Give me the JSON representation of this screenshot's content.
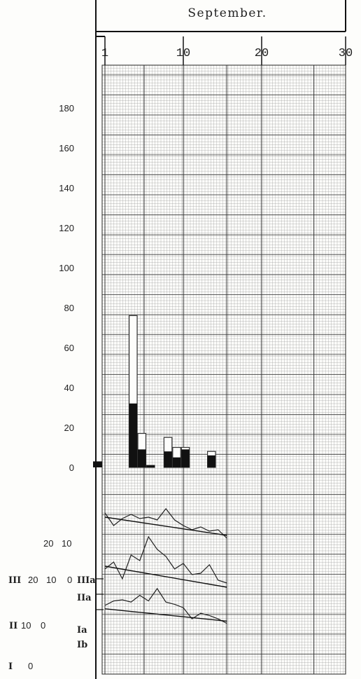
{
  "chart_data": {
    "type": "bar",
    "title": "September.",
    "x_ticks": [
      "1",
      "10",
      "20",
      "30"
    ],
    "upper_y_ticks": [
      "0",
      "20",
      "40",
      "60",
      "80",
      "100",
      "120",
      "140",
      "160",
      "180"
    ],
    "upper_ylim": [
      0,
      200
    ],
    "bar_series": [
      {
        "style": "outline",
        "days": [
          1,
          2,
          3,
          4,
          5,
          6,
          7,
          8,
          9,
          10,
          11,
          12,
          13
        ],
        "values": [
          0,
          0,
          0,
          76,
          17,
          1,
          0,
          15,
          10,
          10,
          0,
          0,
          8
        ]
      },
      {
        "style": "solid",
        "days": [
          1,
          2,
          3,
          4,
          5,
          6,
          7,
          8,
          9,
          10,
          11,
          12,
          13
        ],
        "values": [
          0,
          0,
          0,
          32,
          9,
          1,
          0,
          8,
          5,
          9,
          0,
          0,
          6
        ]
      }
    ],
    "pre_axis_bar_value": 3,
    "lower_line_groups": [
      {
        "scale_ticks": [
          "20",
          "10"
        ],
        "curve": [
          [
            1,
            24
          ],
          [
            2,
            15
          ],
          [
            3,
            20
          ],
          [
            4,
            23
          ],
          [
            5,
            20
          ],
          [
            6,
            21
          ],
          [
            7,
            19
          ],
          [
            8,
            27
          ],
          [
            9,
            19
          ],
          [
            10,
            15
          ],
          [
            11,
            12
          ],
          [
            12,
            14
          ],
          [
            13,
            11
          ],
          [
            14,
            12
          ],
          [
            15,
            6
          ]
        ],
        "trend": [
          [
            1,
            21
          ],
          [
            15,
            8
          ]
        ]
      },
      {
        "label": "IIIa",
        "scale_ticks": [
          "III",
          "20",
          "10",
          "0"
        ],
        "curve": [
          [
            1,
            10
          ],
          [
            2,
            15
          ],
          [
            3,
            3
          ],
          [
            4,
            20
          ],
          [
            5,
            16
          ],
          [
            6,
            33
          ],
          [
            7,
            24
          ],
          [
            8,
            19
          ],
          [
            9,
            10
          ],
          [
            10,
            14
          ],
          [
            11,
            6
          ],
          [
            12,
            7
          ],
          [
            13,
            13
          ],
          [
            14,
            2
          ],
          [
            15,
            0
          ]
        ],
        "trend": [
          [
            1,
            12
          ],
          [
            15,
            -3
          ]
        ]
      },
      {
        "label": "IIa",
        "scale_ticks": [],
        "curve": [],
        "trend": []
      },
      {
        "label": "Ia",
        "scale_ticks": [
          "II",
          "10",
          "0"
        ],
        "curve": [
          [
            1,
            15
          ],
          [
            2,
            19
          ],
          [
            3,
            20
          ],
          [
            4,
            18
          ],
          [
            5,
            24
          ],
          [
            6,
            19
          ],
          [
            7,
            30
          ],
          [
            8,
            18
          ],
          [
            9,
            16
          ],
          [
            10,
            13
          ],
          [
            11,
            3
          ],
          [
            12,
            8
          ],
          [
            13,
            6
          ],
          [
            14,
            3
          ],
          [
            15,
            -1
          ]
        ],
        "trend": [
          [
            1,
            12
          ],
          [
            15,
            1
          ]
        ]
      },
      {
        "label": "Ib",
        "scale_ticks": [
          "I",
          "0"
        ],
        "curve": [],
        "trend": []
      }
    ]
  }
}
